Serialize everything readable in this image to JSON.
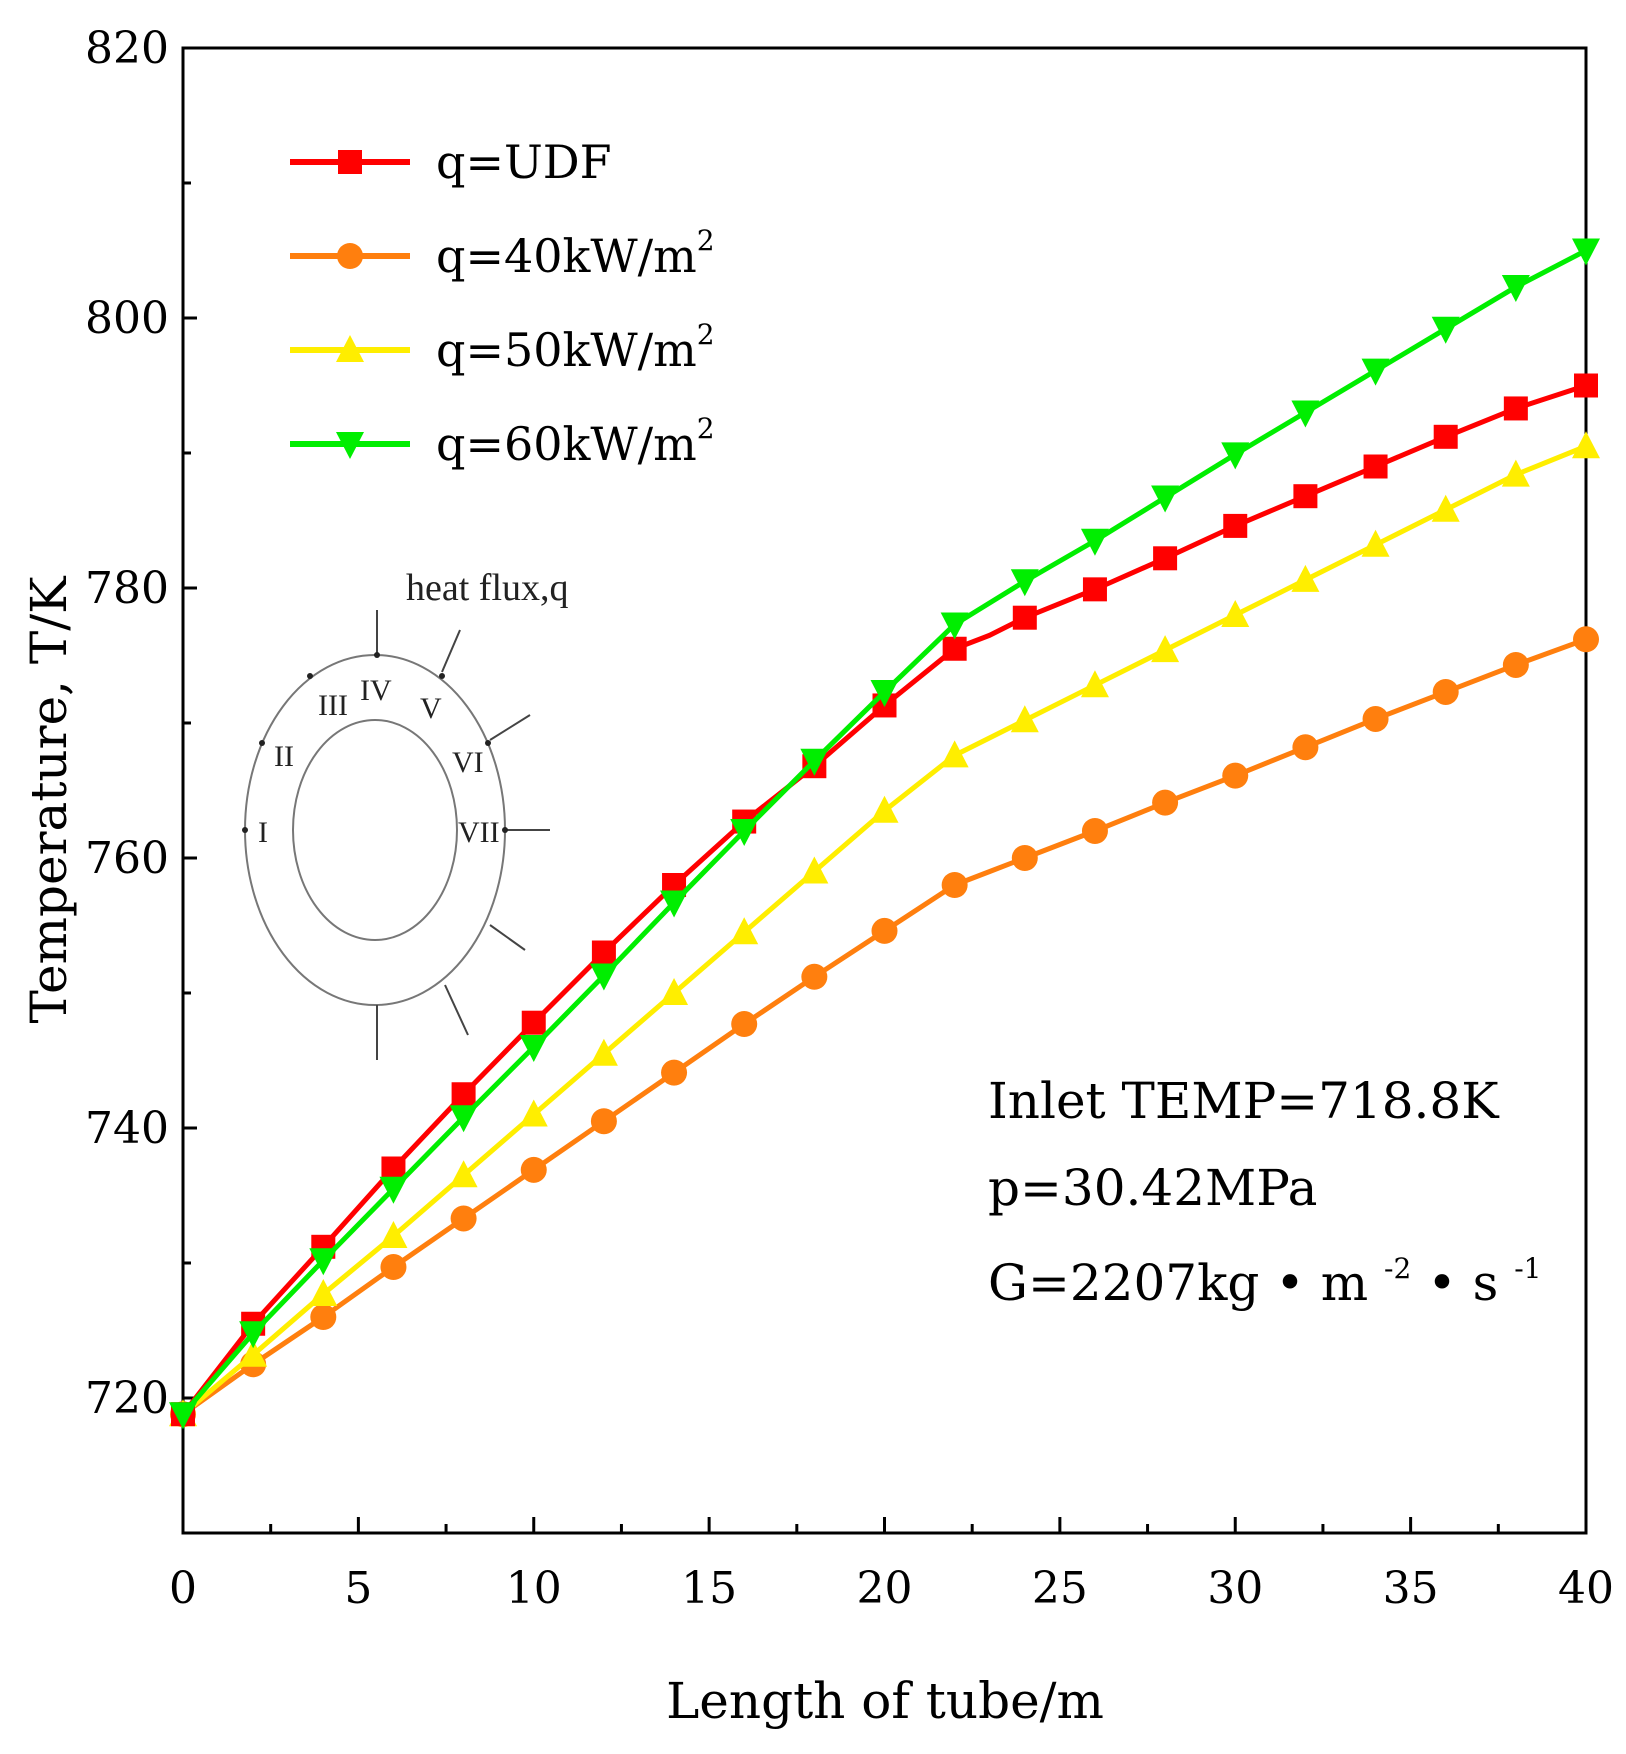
{
  "chart_data": {
    "type": "line",
    "title": "",
    "xlabel": "Length of tube/m",
    "ylabel": "Temperature, T/K",
    "xlim": [
      0,
      40
    ],
    "ylim": [
      710,
      820
    ],
    "xticks": [
      "0",
      "5",
      "10",
      "15",
      "20",
      "25",
      "30",
      "35",
      "40"
    ],
    "yticks": [
      "720",
      "740",
      "760",
      "780",
      "800",
      "820"
    ],
    "legend_position": "top-left",
    "series": [
      {
        "name": "q=UDF",
        "name_base": "q=UDF",
        "name_sup": "",
        "color": "#ff0000",
        "marker": "square",
        "x": [
          0,
          2,
          4,
          6,
          8,
          10,
          12,
          14,
          16,
          18,
          20,
          22,
          23,
          24,
          26,
          28,
          30,
          32,
          34,
          36,
          38,
          40
        ],
        "y": [
          718.8,
          725.5,
          731.2,
          737.0,
          742.5,
          747.8,
          753.0,
          758.0,
          762.7,
          766.8,
          771.3,
          775.5,
          776.5,
          777.8,
          779.9,
          782.2,
          784.6,
          786.8,
          789.0,
          791.2,
          793.3,
          795.0
        ],
        "markers_at": [
          0,
          2,
          4,
          6,
          8,
          10,
          12,
          14,
          16,
          18,
          20,
          22,
          24,
          26,
          28,
          30,
          32,
          34,
          36,
          38,
          40
        ]
      },
      {
        "name": "q=40kW/m2",
        "name_base": "q=40kW/m",
        "name_sup": "2",
        "color": "#ff7f0e",
        "marker": "circle",
        "x": [
          0,
          2,
          4,
          6,
          8,
          10,
          12,
          14,
          16,
          18,
          20,
          22,
          23,
          24,
          26,
          28,
          30,
          32,
          34,
          36,
          38,
          40
        ],
        "y": [
          718.8,
          722.5,
          726.0,
          729.7,
          733.3,
          736.9,
          740.5,
          744.1,
          747.7,
          751.2,
          754.6,
          758.0,
          759.0,
          760.0,
          762.0,
          764.1,
          766.1,
          768.2,
          770.3,
          772.3,
          774.3,
          776.2
        ],
        "markers_at": [
          0,
          2,
          4,
          6,
          8,
          10,
          12,
          14,
          16,
          18,
          20,
          22,
          24,
          26,
          28,
          30,
          32,
          34,
          36,
          38,
          40
        ]
      },
      {
        "name": "q=50kW/m2",
        "name_base": "q=50kW/m",
        "name_sup": "2",
        "color": "#ffee00",
        "marker": "triangle-up",
        "x": [
          0,
          2,
          4,
          6,
          8,
          10,
          12,
          14,
          16,
          18,
          20,
          22,
          24,
          26,
          28,
          30,
          32,
          34,
          36,
          38,
          40
        ],
        "y": [
          718.8,
          723.2,
          727.7,
          732.0,
          736.5,
          741.0,
          745.5,
          750.0,
          754.5,
          759.0,
          763.5,
          767.6,
          770.2,
          772.8,
          775.4,
          778.0,
          780.6,
          783.2,
          785.8,
          788.4,
          790.5
        ],
        "markers_at": [
          0,
          2,
          4,
          6,
          8,
          10,
          12,
          14,
          16,
          18,
          20,
          22,
          24,
          26,
          28,
          30,
          32,
          34,
          36,
          38,
          40
        ]
      },
      {
        "name": "q=60kW/m2",
        "name_base": "q=60kW/m",
        "name_sup": "2",
        "color": "#00ee00",
        "marker": "triangle-down",
        "x": [
          0,
          2,
          4,
          6,
          8,
          10,
          12,
          14,
          16,
          18,
          20,
          22,
          24,
          26,
          28,
          30,
          32,
          34,
          36,
          38,
          40
        ],
        "y": [
          718.8,
          724.8,
          730.2,
          735.5,
          740.8,
          746.0,
          751.3,
          756.7,
          762.0,
          767.2,
          772.3,
          777.3,
          780.5,
          783.5,
          786.7,
          789.9,
          793.0,
          796.1,
          799.2,
          802.3,
          805.0
        ],
        "markers_at": [
          0,
          2,
          4,
          6,
          8,
          10,
          12,
          14,
          16,
          18,
          20,
          22,
          24,
          26,
          28,
          30,
          32,
          34,
          36,
          38,
          40
        ]
      }
    ],
    "annotations": {
      "inlet": "Inlet TEMP=718.8K",
      "pressure": "p=30.42MPa",
      "mass_flux_base": "G=2207kg",
      "mass_flux_dot1": "•",
      "mass_flux_m": "m",
      "mass_flux_m_exp": "-2",
      "mass_flux_dot2": "•",
      "mass_flux_s": "s",
      "mass_flux_s_exp": "-1"
    },
    "inset": {
      "title": "heat flux,q",
      "labels": [
        "I",
        "II",
        "III",
        "IV",
        "V",
        "VI",
        "VII"
      ]
    }
  }
}
